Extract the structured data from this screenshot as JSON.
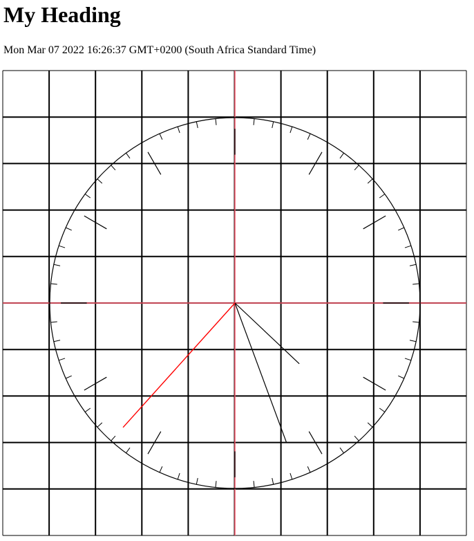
{
  "page": {
    "heading": "My Heading",
    "datetime": "Mon Mar 07 2022 16:26:37 GMT+0200 (South Africa Standard Time)"
  },
  "grid": {
    "columns": 10,
    "rows": 10,
    "line_color": "#000000",
    "axis_color": "#ff5a6e"
  },
  "clock": {
    "hours": 16,
    "minutes": 26,
    "seconds": 37,
    "face_color": "#000000",
    "hour_hand_color": "#000000",
    "minute_hand_color": "#000000",
    "second_hand_color": "#ff0000"
  }
}
